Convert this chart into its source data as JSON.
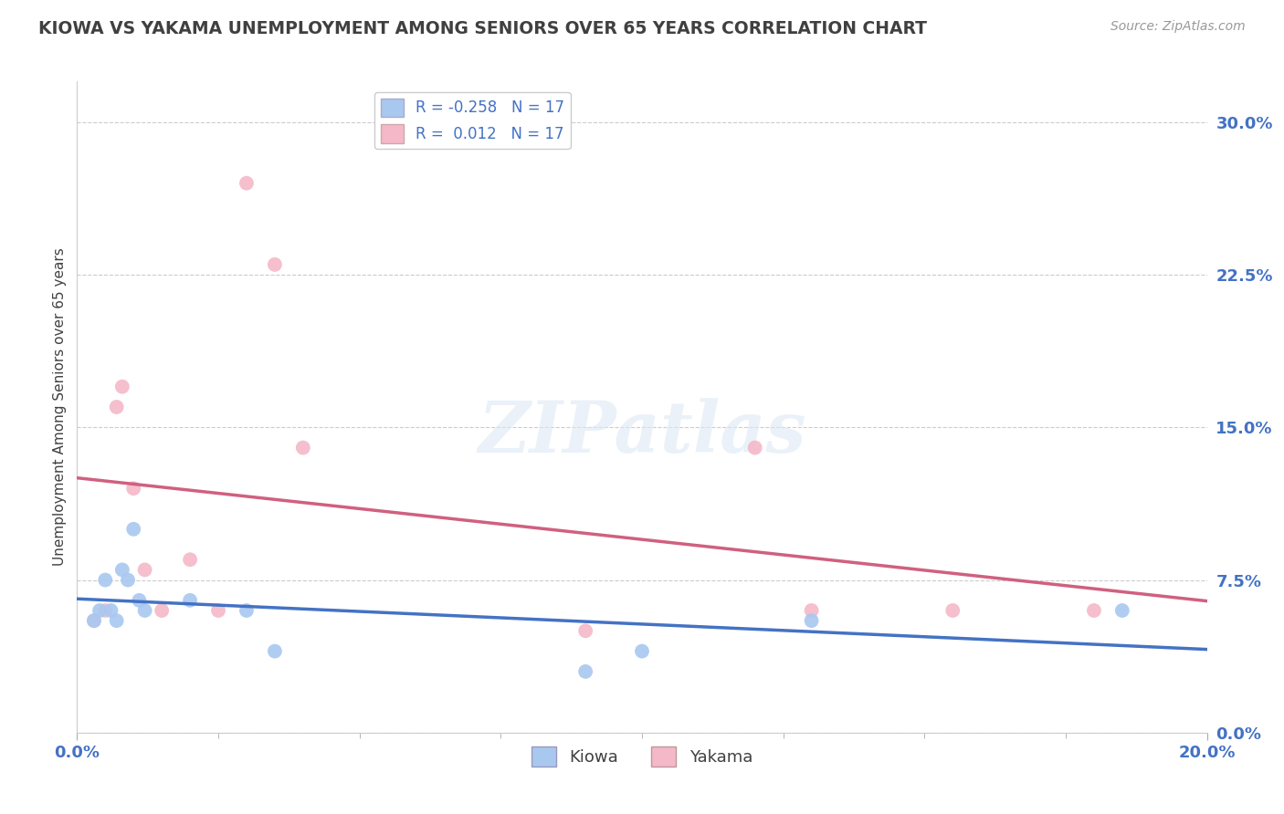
{
  "title": "KIOWA VS YAKAMA UNEMPLOYMENT AMONG SENIORS OVER 65 YEARS CORRELATION CHART",
  "source_text": "Source: ZipAtlas.com",
  "ylabel": "Unemployment Among Seniors over 65 years",
  "xlim": [
    0.0,
    0.2
  ],
  "ylim": [
    0.0,
    0.32
  ],
  "ytick_values": [
    0.0,
    0.075,
    0.15,
    0.225,
    0.3
  ],
  "kiowa_R": -0.258,
  "kiowa_N": 17,
  "yakama_R": 0.012,
  "yakama_N": 17,
  "kiowa_color": "#a8c8f0",
  "yakama_color": "#f4b8c8",
  "kiowa_line_color": "#4472c4",
  "yakama_line_color": "#d06080",
  "background_color": "#ffffff",
  "grid_color": "#cccccc",
  "title_color": "#404040",
  "axis_label_color": "#4472c4",
  "source_color": "#999999",
  "kiowa_x": [
    0.003,
    0.004,
    0.005,
    0.006,
    0.007,
    0.008,
    0.009,
    0.01,
    0.011,
    0.012,
    0.02,
    0.03,
    0.035,
    0.09,
    0.1,
    0.13,
    0.185
  ],
  "kiowa_y": [
    0.055,
    0.06,
    0.075,
    0.06,
    0.055,
    0.08,
    0.075,
    0.1,
    0.065,
    0.06,
    0.065,
    0.06,
    0.04,
    0.03,
    0.04,
    0.055,
    0.06
  ],
  "yakama_x": [
    0.003,
    0.005,
    0.007,
    0.008,
    0.01,
    0.012,
    0.015,
    0.02,
    0.025,
    0.03,
    0.035,
    0.04,
    0.09,
    0.12,
    0.13,
    0.155,
    0.18
  ],
  "yakama_y": [
    0.055,
    0.06,
    0.16,
    0.17,
    0.12,
    0.08,
    0.06,
    0.085,
    0.06,
    0.27,
    0.23,
    0.14,
    0.05,
    0.14,
    0.06,
    0.06,
    0.06
  ],
  "marker_size": 130,
  "line_width": 2.5
}
